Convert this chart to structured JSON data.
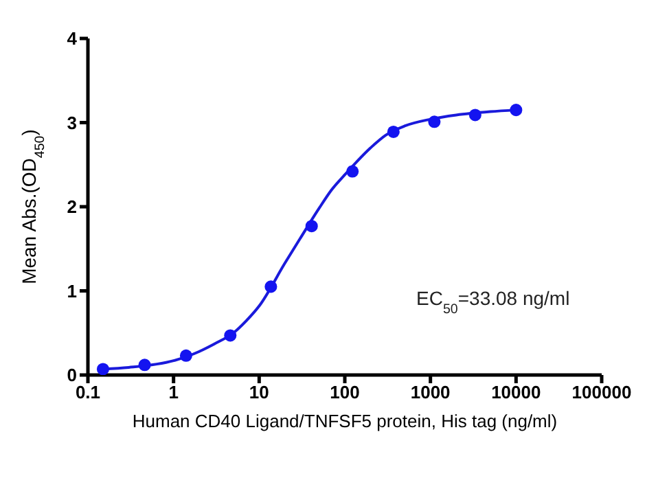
{
  "chart_data": {
    "type": "scatter",
    "xlabel": "Human CD40 Ligand/TNFSF5 protein, His tag (ng/ml)",
    "ylabel": "Mean Abs.(OD$_{450}$)",
    "log": "x",
    "xlim": [
      0.1,
      100000
    ],
    "xticks": [
      0.1,
      1,
      10,
      100,
      1000,
      10000,
      100000
    ],
    "ylim": [
      0,
      4
    ],
    "yticks": [
      0,
      1,
      2,
      3,
      4
    ],
    "grid": false,
    "annotations": [
      "EC$_{50}$=33.08 ng/ml"
    ],
    "series": [
      {
        "type": "line",
        "color": "#1a1adb",
        "marker": "none",
        "line_style": "solid",
        "x": [
          0.15,
          0.3,
          1,
          2,
          3,
          5,
          7,
          10,
          20,
          30,
          50,
          70,
          100,
          200,
          300,
          500,
          1000,
          2000,
          5000,
          10000
        ],
        "values": [
          0.07,
          0.09,
          0.17,
          0.28,
          0.37,
          0.5,
          0.64,
          0.82,
          1.33,
          1.62,
          1.98,
          2.2,
          2.38,
          2.7,
          2.85,
          2.96,
          3.04,
          3.09,
          3.13,
          3.15
        ]
      },
      {
        "color": "#1414f0",
        "marker": "circle",
        "x": [
          0.15,
          0.46,
          1.4,
          4.6,
          13.7,
          41,
          123,
          370,
          1111,
          3333,
          10000
        ],
        "values": [
          0.07,
          0.12,
          0.23,
          0.47,
          1.05,
          1.77,
          2.42,
          2.89,
          3.01,
          3.09,
          3.15
        ]
      }
    ]
  }
}
